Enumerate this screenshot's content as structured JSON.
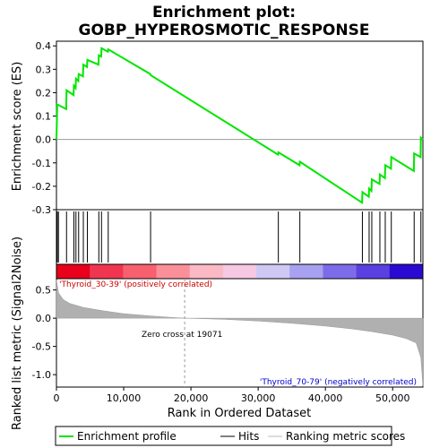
{
  "chart_data": {
    "type": "line",
    "title_line1": "Enrichment plot:",
    "title_line2": "GOBP_HYPEROSMOTIC_RESPONSE",
    "es_ylabel": "Enrichment score (ES)",
    "rank_ylabel": "Ranked list metric (Signal2Noise)",
    "xlabel": "Rank in Ordered Dataset",
    "xlim": [
      0,
      54500
    ],
    "es_ylim": [
      -0.3,
      0.42
    ],
    "es_yticks": [
      "0.4",
      "0.3",
      "0.2",
      "0.1",
      "0.0",
      "-0.1",
      "-0.2",
      "-0.3"
    ],
    "rank_ylim": [
      -1.22,
      0.7
    ],
    "rank_yticks": [
      "0.5",
      "0.0",
      "-0.5",
      "-1.0"
    ],
    "xticks": [
      "0",
      "10,000",
      "20,000",
      "30,000",
      "40,000",
      "50,000"
    ],
    "zero_cross_label": "Zero cross at 19071",
    "zero_cross": 19071,
    "pos_label": "'Thyroid_30-39' (positively correlated)",
    "neg_label": "'Thyroid_70-79' (negatively correlated)",
    "hits": [
      120,
      300,
      1500,
      2600,
      2900,
      3300,
      4000,
      4600,
      6300,
      6700,
      7700,
      14000,
      33000,
      36200,
      45500,
      46500,
      46900,
      48100,
      48900,
      49800,
      53200,
      54200
    ],
    "es_points": [
      [
        0,
        0.0
      ],
      [
        120,
        0.15
      ],
      [
        1450,
        0.13
      ],
      [
        1500,
        0.21
      ],
      [
        2550,
        0.19
      ],
      [
        2600,
        0.23
      ],
      [
        2850,
        0.22
      ],
      [
        2900,
        0.26
      ],
      [
        3250,
        0.25
      ],
      [
        3300,
        0.28
      ],
      [
        3950,
        0.27
      ],
      [
        4000,
        0.32
      ],
      [
        4550,
        0.31
      ],
      [
        4600,
        0.34
      ],
      [
        6250,
        0.32
      ],
      [
        6300,
        0.36
      ],
      [
        6650,
        0.355
      ],
      [
        6700,
        0.39
      ],
      [
        7650,
        0.375
      ],
      [
        7700,
        0.385
      ],
      [
        13950,
        0.28
      ],
      [
        14000,
        0.275
      ],
      [
        32950,
        -0.065
      ],
      [
        33000,
        -0.055
      ],
      [
        36150,
        -0.11
      ],
      [
        36200,
        -0.095
      ],
      [
        45450,
        -0.27
      ],
      [
        45500,
        -0.225
      ],
      [
        46450,
        -0.245
      ],
      [
        46500,
        -0.21
      ],
      [
        46850,
        -0.22
      ],
      [
        46900,
        -0.17
      ],
      [
        48050,
        -0.19
      ],
      [
        48100,
        -0.15
      ],
      [
        48850,
        -0.165
      ],
      [
        48900,
        -0.11
      ],
      [
        49750,
        -0.125
      ],
      [
        49800,
        -0.075
      ],
      [
        53150,
        -0.135
      ],
      [
        53200,
        -0.06
      ],
      [
        54150,
        -0.075
      ],
      [
        54200,
        0.008
      ],
      [
        54500,
        0.0
      ]
    ],
    "rank_metric": [
      [
        0,
        0.68
      ],
      [
        300,
        0.45
      ],
      [
        1000,
        0.33
      ],
      [
        2000,
        0.26
      ],
      [
        4000,
        0.19
      ],
      [
        7000,
        0.13
      ],
      [
        10000,
        0.08
      ],
      [
        14000,
        0.04
      ],
      [
        17000,
        0.015
      ],
      [
        19071,
        0.0
      ],
      [
        25000,
        -0.02
      ],
      [
        30000,
        -0.05
      ],
      [
        35000,
        -0.09
      ],
      [
        40000,
        -0.14
      ],
      [
        44000,
        -0.19
      ],
      [
        47000,
        -0.24
      ],
      [
        50000,
        -0.3
      ],
      [
        52000,
        -0.36
      ],
      [
        53500,
        -0.44
      ],
      [
        54200,
        -0.7
      ],
      [
        54500,
        -1.2
      ]
    ],
    "heat_colors": [
      "#e8001c",
      "#f03550",
      "#f86070",
      "#fa8f9a",
      "#fbb8c5",
      "#f6c8e2",
      "#d0c8f4",
      "#a8a0f0",
      "#7c6cea",
      "#5a40e0",
      "#2a0ad2"
    ],
    "line_color": "#00e600",
    "legend": [
      "Enrichment profile",
      "Hits",
      "Ranking metric scores"
    ]
  }
}
